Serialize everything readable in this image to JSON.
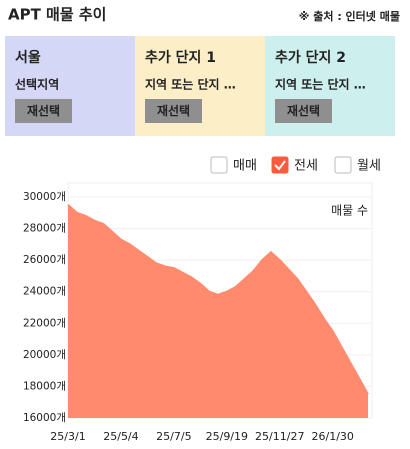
{
  "header": {
    "title": "APT 매물 추이",
    "source": "※ 출처 : 인터넷 매물"
  },
  "panels": [
    {
      "label": "서울",
      "subtitle": "선택지역",
      "button": "재선택",
      "color": "#d5d7f7",
      "label_color": "#3b5bdb"
    },
    {
      "label": "추가 단지 1",
      "subtitle": "지역 또는 단지 …",
      "button": "재선택",
      "color": "#fcefc7",
      "label_color": "#f5a31a"
    },
    {
      "label": "추가 단지 2",
      "subtitle": "지역 또는 단지 …",
      "button": "재선택",
      "color": "#cdefed",
      "label_color": "#17a09a"
    }
  ],
  "legend": [
    {
      "label": "매매",
      "checked": false
    },
    {
      "label": "전세",
      "checked": true,
      "color": "#ff5b3a"
    },
    {
      "label": "월세",
      "checked": false
    }
  ],
  "chart_data": {
    "type": "area",
    "annotation": "매물 수",
    "color": "#ff8a6e",
    "categories": [
      "25/3/1",
      null,
      null,
      null,
      null,
      null,
      "25/5/4",
      null,
      null,
      null,
      null,
      null,
      "25/7/5",
      null,
      null,
      null,
      null,
      null,
      "25/9/19",
      null,
      null,
      null,
      null,
      null,
      "25/11/27",
      null,
      null,
      null,
      null,
      null,
      "26/1/30",
      null,
      null,
      null,
      null
    ],
    "values": [
      29500,
      29000,
      28800,
      28500,
      28300,
      27800,
      27300,
      27000,
      26600,
      26200,
      25800,
      25600,
      25500,
      25200,
      24900,
      24500,
      24000,
      23800,
      24000,
      24300,
      24800,
      25300,
      26000,
      26500,
      26000,
      25400,
      24800,
      24000,
      23200,
      22300,
      21500,
      20500,
      19500,
      18500,
      17500
    ],
    "ylim": [
      16000,
      30000
    ],
    "yticks": [
      {
        "value": 16000,
        "label": "16000개"
      },
      {
        "value": 18000,
        "label": "18000개"
      },
      {
        "value": 20000,
        "label": "20000개"
      },
      {
        "value": 22000,
        "label": "22000개"
      },
      {
        "value": 24000,
        "label": "24000개"
      },
      {
        "value": 26000,
        "label": "26000개"
      },
      {
        "value": 28000,
        "label": "28000개"
      },
      {
        "value": 30000,
        "label": "30000개"
      }
    ]
  }
}
